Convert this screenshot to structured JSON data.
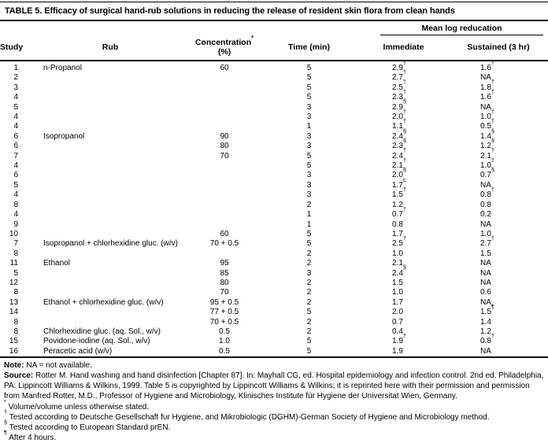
{
  "title": "TABLE 5. Efficacy of surgical hand-rub solutions in reducing the release of resident skin flora from clean hands",
  "table": {
    "group_header": "Mean log reducation",
    "headers": {
      "study": "Study",
      "rub": "Rub",
      "concentration_pre": "Concentration",
      "concentration_sup": "*",
      "concentration_post": " (%)",
      "time": "Time (min)",
      "immediate": "Immediate",
      "sustained": "Sustained (3 hr)"
    },
    "rows": [
      {
        "study": "1",
        "rub": "n-Propanol",
        "conc": "60",
        "time": "5",
        "imm": "2.9",
        "imm_sup": "†",
        "sus": "1.6",
        "sus_sup": "†"
      },
      {
        "study": "2",
        "rub": "",
        "conc": "",
        "time": "5",
        "imm": "2.7",
        "imm_sup": "†",
        "sus": "NA"
      },
      {
        "study": "3",
        "rub": "",
        "conc": "",
        "time": "5",
        "imm": "2.5",
        "imm_sup": "†",
        "sus": "1.8",
        "sus_sup": "†"
      },
      {
        "study": "4",
        "rub": "",
        "conc": "",
        "time": "5",
        "imm": "2.3",
        "imm_sup": "†",
        "sus": "1.6",
        "sus_sup": "†"
      },
      {
        "study": "5",
        "rub": "",
        "conc": "",
        "time": "3",
        "imm": "2.9",
        "imm_sup": "§",
        "sus": "NA"
      },
      {
        "study": "4",
        "rub": "",
        "conc": "",
        "time": "3",
        "imm": "2.0",
        "imm_sup": "†",
        "sus": "1.0",
        "sus_sup": "†"
      },
      {
        "study": "4",
        "rub": "",
        "conc": "",
        "time": "1",
        "imm": "1.1",
        "imm_sup": "†",
        "sus": "0.5",
        "sus_sup": "†"
      },
      {
        "study": "6",
        "rub": "Isopropanol",
        "conc": "90",
        "time": "3",
        "imm": "2.4",
        "imm_sup": "§",
        "sus": "1.4",
        "sus_sup": "§"
      },
      {
        "study": "6",
        "rub": "",
        "conc": "80",
        "time": "3",
        "imm": "2.3",
        "imm_sup": "§",
        "sus": "1.2",
        "sus_sup": "§"
      },
      {
        "study": "7",
        "rub": "",
        "conc": "70",
        "time": "5",
        "imm": "2.4",
        "imm_sup": "†",
        "sus": "2.1",
        "sus_sup": "†"
      },
      {
        "study": "4",
        "rub": "",
        "conc": "",
        "time": "5",
        "imm": "2.1",
        "imm_sup": "†",
        "sus": "1.0",
        "sus_sup": "†"
      },
      {
        "study": "6",
        "rub": "",
        "conc": "",
        "time": "3",
        "imm": "2.0",
        "imm_sup": "§",
        "sus": "0.7",
        "sus_sup": "§"
      },
      {
        "study": "5",
        "rub": "",
        "conc": "",
        "time": "3",
        "imm": "1.7",
        "imm_sup": "c",
        "sus": "NA"
      },
      {
        "study": "4",
        "rub": "",
        "conc": "",
        "time": "3",
        "imm": "1.5",
        "imm_sup": "†",
        "sus": "0.8",
        "sus_sup": "†"
      },
      {
        "study": "8",
        "rub": "",
        "conc": "",
        "time": "2",
        "imm": "1.2",
        "sus": "0.8"
      },
      {
        "study": "4",
        "rub": "",
        "conc": "",
        "time": "1",
        "imm": "0.7",
        "imm_sup": "†",
        "sus": "0.2"
      },
      {
        "study": "9",
        "rub": "",
        "conc": "",
        "time": "1",
        "imm": "0.8",
        "sus": "NA"
      },
      {
        "study": "10",
        "rub": "",
        "conc": "60",
        "time": "5",
        "imm": "1.7",
        "sus": "1.0"
      },
      {
        "study": "7",
        "rub": "Isopropanol + chlorhexidine gluc. (w/v)",
        "conc": "70 + 0.5",
        "time": "5",
        "imm": "2.5",
        "imm_sup": "†",
        "sus": "2.7",
        "sus_sup": "†"
      },
      {
        "study": "8",
        "rub": "",
        "conc": "",
        "time": "2",
        "imm": "1.0",
        "sus": "1.5"
      },
      {
        "study": "11",
        "rub": "Ethanol",
        "conc": "95",
        "time": "2",
        "imm": "2.1",
        "sus": "NA"
      },
      {
        "study": "5",
        "rub": "",
        "conc": "85",
        "time": "3",
        "imm": "2.4",
        "imm_sup": "§",
        "sus": "NA"
      },
      {
        "study": "12",
        "rub": "",
        "conc": "80",
        "time": "2",
        "imm": "1.5",
        "sus": "NA"
      },
      {
        "study": "8",
        "rub": "",
        "conc": "70",
        "time": "2",
        "imm": "1.0",
        "sus": "0.6"
      },
      {
        "study": "13",
        "rub": "Ethanol + chlorhexidine gluc. (w/v)",
        "conc": "95 + 0.5",
        "time": "2",
        "imm": "1.7",
        "sus": "NA"
      },
      {
        "study": "14",
        "rub": "",
        "conc": "77 + 0.5",
        "time": "5",
        "imm": "2.0",
        "sus": "1.5",
        "sus_sup": "¶"
      },
      {
        "study": "8",
        "rub": "",
        "conc": "70 + 0.5",
        "time": "2",
        "imm": "0.7",
        "sus": "1.4"
      },
      {
        "study": "8",
        "rub": "Chlorhexidine gluc. (aq. Sol., w/v)",
        "conc": "0.5",
        "time": "2",
        "imm": "0.4",
        "sus": "1.2"
      },
      {
        "study": "15",
        "rub": "Povidone-iodine (aq. Sol., w/v)",
        "conc": "1.0",
        "time": "5",
        "imm": "1.9",
        "imm_sup": "†",
        "sus": "0.8",
        "sus_sup": "†"
      },
      {
        "study": "16",
        "rub": "Peracetic acid (w/v)",
        "conc": "0.5",
        "time": "5",
        "imm": "1.9",
        "sus": "NA"
      }
    ]
  },
  "footer": {
    "note_label": "Note:",
    "note_text": " NA = not available.",
    "source_label": "Source:",
    "source_text": " Rotter M. Hand washing and hand disinfection [Chapter 87]. In: Mayhall CG, ed. Hospital epidemiology and infection control. 2nd ed. Philadelphia, PA: Lippincott Williams & Wilkins, 1999. Table 5 is copyrighted by Lippincott Williams & Wilkins; it is reprinted here with their permission and permission from Manfred Rotter, M.D., Professor of Hygiene and Microbiology, Klinisches Institute für Hygiene der Universitat Wien, Germany.",
    "footnotes": [
      {
        "sym": "*",
        "text": "Volume/volume unless otherwise stated."
      },
      {
        "sym": "†",
        "text": "Tested according to Deutsche Gesellschaft fur Hygiene, and Mikrobiologic (DGHM)-German Society of Hygiene and Microbiology method."
      },
      {
        "sym": "§",
        "text": "Tested according to European Standard prEN."
      },
      {
        "sym": "¶",
        "text": "After 4 hours."
      }
    ]
  },
  "colors": {
    "text": "#000000",
    "background": "#ffffff",
    "rule": "#000000"
  }
}
